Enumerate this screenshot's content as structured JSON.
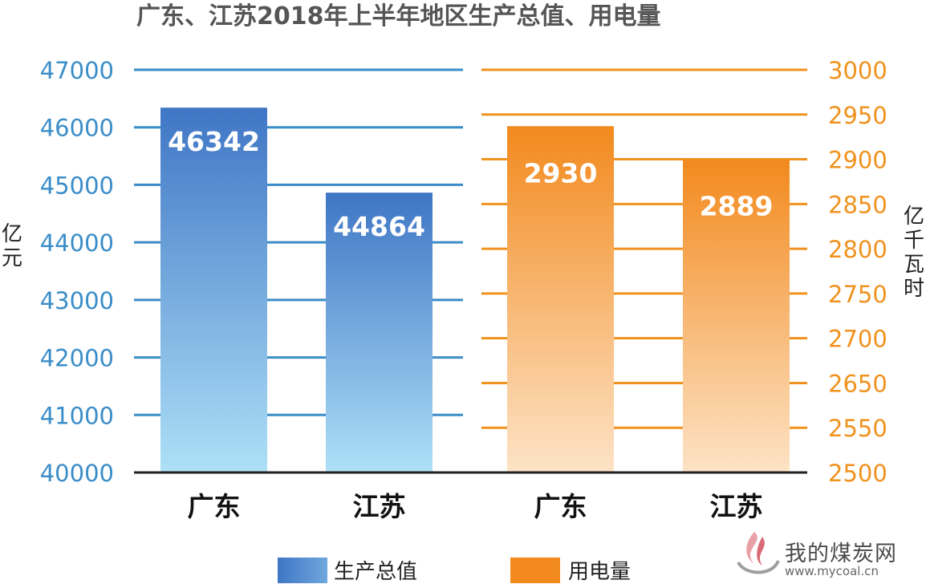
{
  "title": "广东、江苏2018年上半年地区生产总值、用电量",
  "colors": {
    "gdp_top": "#3f76c5",
    "gdp_bottom": "#aee0f7",
    "power_top": "#f28a1e",
    "power_bottom": "#fde3c6",
    "gdp_axis": "#3a8dc8",
    "power_axis": "#f0921e",
    "title": "#555555"
  },
  "chart_data": [
    {
      "type": "bar",
      "title": "广东、江苏2018年上半年地区生产总值、用电量",
      "categories": [
        "广东",
        "江苏"
      ],
      "series": [
        {
          "name": "生产总值",
          "values": [
            46342,
            44864
          ]
        }
      ],
      "ylabel": "亿元",
      "ylim": [
        40000,
        47000
      ],
      "yticks": [
        "40000",
        "41000",
        "42000",
        "43000",
        "44000",
        "45000",
        "46000",
        "47000"
      ],
      "data_labels": [
        "46342",
        "44864"
      ],
      "grid": true,
      "axis_side": "left"
    },
    {
      "type": "bar",
      "categories": [
        "广东",
        "江苏"
      ],
      "series": [
        {
          "name": "用电量",
          "values": [
            2930,
            2889
          ]
        }
      ],
      "ylabel": "亿千瓦时",
      "ylim": [
        2500,
        3000
      ],
      "yticks": [
        "2500",
        "2550",
        "2650",
        "2700",
        "2750",
        "2800",
        "2850",
        "2900",
        "2950",
        "3000"
      ],
      "data_labels": [
        "2930",
        "2889"
      ],
      "grid": true,
      "axis_side": "right"
    }
  ],
  "legend": [
    "生产总值",
    "用电量"
  ],
  "watermark": {
    "text": "我的煤炭网",
    "url": "www.mycoal.cn"
  }
}
